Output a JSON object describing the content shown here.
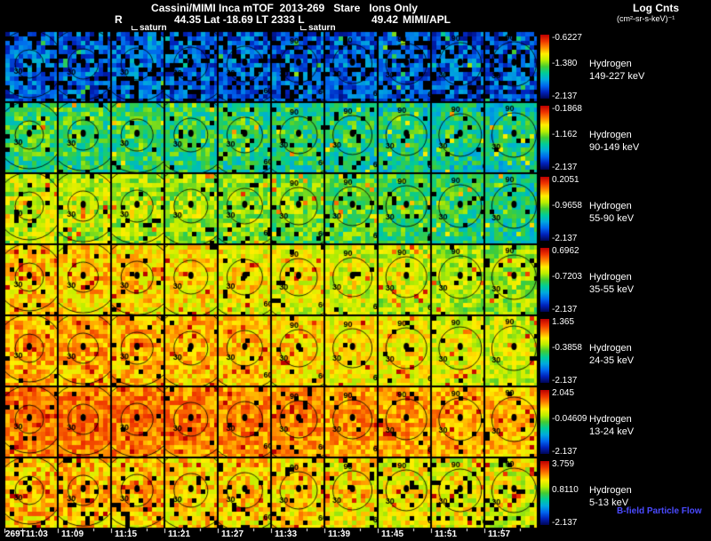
{
  "title": {
    "line1": "Cassini/MIMI Inca mTOF  2013-269   Stare   Ions Only",
    "r_label": "R",
    "coords": "44.35 Lat -18.69 LT 2333 L",
    "l_value": "49.42",
    "credit": "MIMI/APL"
  },
  "annotations": {
    "saturn1": "saturn",
    "saturn2": "saturn"
  },
  "colorbar_header": {
    "line1": "Log Cnts",
    "line2": "(cm²-sr-s-keV)⁻¹"
  },
  "footer": {
    "bfield": "B-field Particle Flow"
  },
  "colors": {
    "background": "#000000",
    "text": "#ffffff",
    "bfield_label": "#4a4aff"
  },
  "chart_data": {
    "type": "heatmap",
    "title": "Cassini/MIMI Inca mTOF 2013-269 Stare Ions Only",
    "description": "Grid of all-sky ion count-rate images: 7 hydrogen energy bands (rows) by 10 time steps (columns). Each panel has angle rings at 30/60/90 degrees and a black dot marking Saturn. Each row has its own log-counts rainbow colorbar.",
    "x_ticks": [
      "269T11:03",
      "11:09",
      "11:15",
      "11:21",
      "11:27",
      "11:33",
      "11:39",
      "11:45",
      "11:51",
      "11:57"
    ],
    "columns_per_row": 10,
    "ring_labels": [
      "30",
      "60",
      "90"
    ],
    "colorbar_common_min": "-2.137",
    "colormap_stops": [
      "#bb0000",
      "#ee3300",
      "#ff8800",
      "#ffee00",
      "#bbee00",
      "#44cc33",
      "#00cc99",
      "#00aadd",
      "#0066ee",
      "#0022bb",
      "#000555"
    ],
    "rows": [
      {
        "species": "Hydrogen",
        "energy": "149-227 keV",
        "cb_max": "-0.6227",
        "cb_mid": "-1.380",
        "cb_min": "-2.137",
        "render": {
          "base": 0.16,
          "spread": 0.13,
          "shift": -0.02,
          "black": 0.2,
          "boost": 0.06
        }
      },
      {
        "species": "Hydrogen",
        "energy": "90-149 keV",
        "cb_max": "-0.1868",
        "cb_mid": "-1.162",
        "cb_min": "-2.137",
        "render": {
          "base": 0.42,
          "spread": 0.13,
          "shift": -0.07,
          "black": 0.05,
          "boost": 0.08
        }
      },
      {
        "species": "Hydrogen",
        "energy": "55-90 keV",
        "cb_max": "0.2051",
        "cb_mid": "-0.9658",
        "cb_min": "-2.137",
        "render": {
          "base": 0.58,
          "spread": 0.12,
          "shift": -0.2,
          "black": 0.04,
          "boost": 0.06
        }
      },
      {
        "species": "Hydrogen",
        "energy": "35-55 keV",
        "cb_max": "0.6962",
        "cb_mid": "-0.7203",
        "cb_min": "-2.137",
        "render": {
          "base": 0.7,
          "spread": 0.11,
          "shift": -0.16,
          "black": 0.03,
          "boost": 0.05
        }
      },
      {
        "species": "Hydrogen",
        "energy": "24-35 keV",
        "cb_max": "1.365",
        "cb_mid": "-0.3858",
        "cb_min": "-2.137",
        "render": {
          "base": 0.74,
          "spread": 0.1,
          "shift": -0.14,
          "black": 0.03,
          "boost": 0.05
        }
      },
      {
        "species": "Hydrogen",
        "energy": "13-24 keV",
        "cb_max": "2.045",
        "cb_mid": "-0.04609",
        "cb_min": "-2.137",
        "render": {
          "base": 0.8,
          "spread": 0.09,
          "shift": -0.07,
          "black": 0.03,
          "boost": 0.04
        }
      },
      {
        "species": "Hydrogen",
        "energy": "5-13 keV",
        "cb_max": "3.759",
        "cb_mid": "0.8110",
        "cb_min": "-2.137",
        "render": {
          "base": 0.72,
          "spread": 0.12,
          "shift": -0.09,
          "black": 0.09,
          "boost": 0.04
        }
      }
    ]
  }
}
